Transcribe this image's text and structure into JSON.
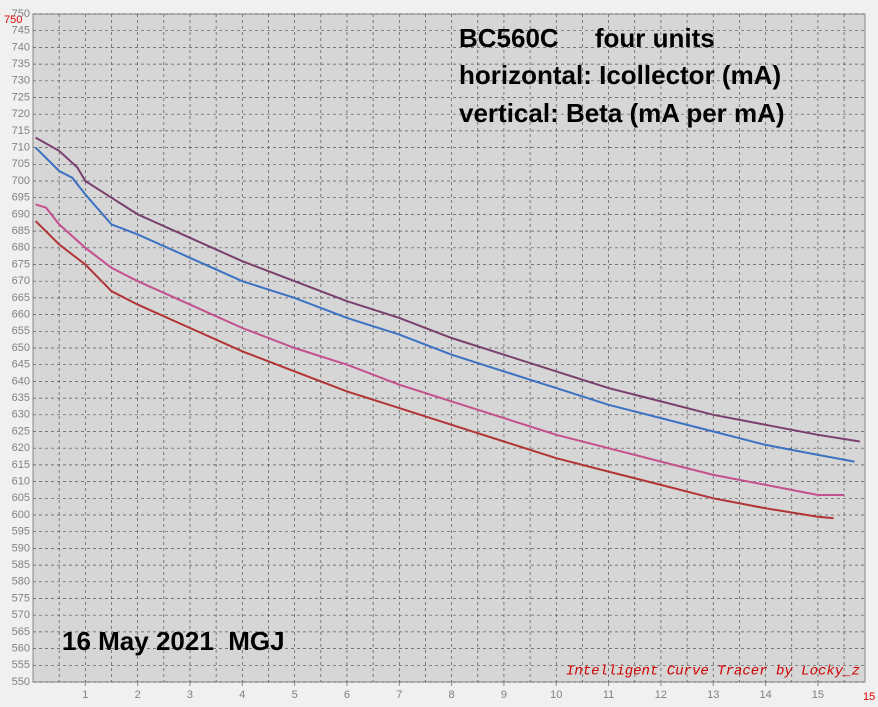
{
  "chart_data": {
    "type": "line",
    "annotations": [
      "BC560C     four units",
      "horizontal: Icollector (mA)",
      "vertical: Beta (mA per mA)",
      "16 May 2021  MGJ",
      "Intelligent Curve Tracer by Locky_z"
    ],
    "y_max_label": "750",
    "x_max_label": "15",
    "xlim": [
      0,
      15.9
    ],
    "ylim": [
      550,
      750
    ],
    "xticks": [
      1,
      2,
      3,
      4,
      5,
      6,
      7,
      8,
      9,
      10,
      11,
      12,
      13,
      14,
      15
    ],
    "xgrid": [
      0.5,
      1,
      1.5,
      2,
      2.5,
      3,
      3.5,
      4,
      4.5,
      5,
      5.5,
      6,
      6.5,
      7,
      7.5,
      8,
      8.5,
      9,
      9.5,
      10,
      10.5,
      11,
      11.5,
      12,
      12.5,
      13,
      13.5,
      14,
      14.5,
      15,
      15.5
    ],
    "yticks": [
      550,
      555,
      560,
      565,
      570,
      575,
      580,
      585,
      590,
      595,
      600,
      605,
      610,
      615,
      620,
      625,
      630,
      635,
      640,
      645,
      650,
      655,
      660,
      665,
      670,
      675,
      680,
      685,
      690,
      695,
      700,
      705,
      710,
      715,
      720,
      725,
      730,
      735,
      740,
      745,
      750
    ],
    "grid": true,
    "series": [
      {
        "color": "#7b3f6e",
        "x": [
          0.05,
          0.5,
          0.85,
          1,
          1.5,
          2,
          3,
          4,
          5,
          6,
          7,
          8,
          9,
          10,
          11,
          12,
          13,
          14,
          15,
          15.8
        ],
        "values": [
          713,
          709,
          704,
          700,
          695,
          690,
          683,
          676,
          670,
          664,
          659,
          653,
          648,
          643,
          638,
          634,
          630,
          627,
          624,
          622
        ]
      },
      {
        "color": "#3b72c2",
        "x": [
          0.05,
          0.5,
          0.75,
          1,
          1.5,
          2,
          3,
          4,
          5,
          6,
          7,
          8,
          9,
          10,
          11,
          12,
          13,
          14,
          15,
          15.7
        ],
        "values": [
          710,
          703,
          701,
          696,
          687,
          684,
          677,
          670,
          665,
          659,
          654,
          648,
          643,
          638,
          633,
          629,
          625,
          621,
          618,
          616
        ]
      },
      {
        "color": "#c4508e",
        "x": [
          0.05,
          0.25,
          0.5,
          1,
          1.5,
          2,
          3,
          4,
          5,
          6,
          7,
          8,
          9,
          10,
          11,
          12,
          13,
          14,
          15,
          15.5
        ],
        "values": [
          693,
          692,
          687,
          680,
          674,
          670,
          663,
          656,
          650,
          645,
          639,
          634,
          629,
          624,
          620,
          616,
          612,
          609,
          606,
          606
        ]
      },
      {
        "color": "#b23434",
        "x": [
          0.05,
          0.5,
          1,
          1.5,
          2,
          3,
          4,
          5,
          6,
          7,
          8,
          9,
          10,
          11,
          12,
          13,
          14,
          15,
          15.3
        ],
        "values": [
          688,
          681,
          675,
          667,
          663,
          656,
          649,
          643,
          637,
          632,
          627,
          622,
          617,
          613,
          609,
          605,
          602,
          599.5,
          599
        ]
      }
    ]
  }
}
